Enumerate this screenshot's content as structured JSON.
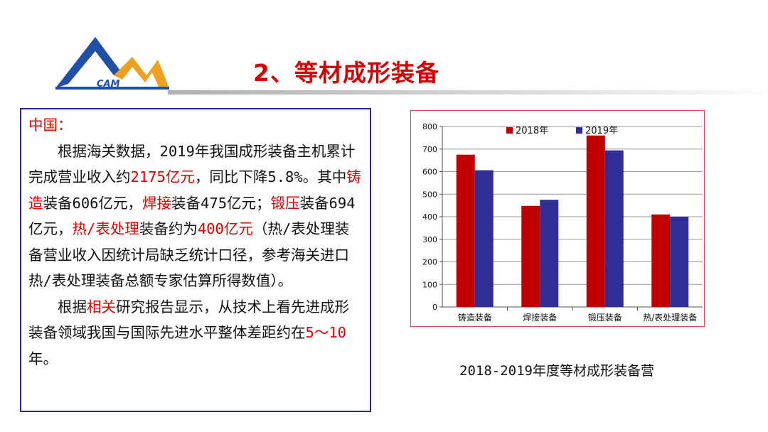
{
  "logo": {
    "text": "CAM"
  },
  "title": "2、等材成形装备",
  "textbox": {
    "heading": "中国：",
    "p1": [
      {
        "text": "根据海关数据，2019年我国成形装备主机累计完成营业收入约",
        "red": false
      },
      {
        "text": "2175亿元",
        "red": true
      },
      {
        "text": "，同比下降5.8%。其中",
        "red": false
      },
      {
        "text": "铸造",
        "red": true
      },
      {
        "text": "装备606亿元，",
        "red": false
      },
      {
        "text": "焊接",
        "red": true
      },
      {
        "text": "装备475亿元；",
        "red": false
      },
      {
        "text": "锻压",
        "red": true
      },
      {
        "text": "装备694亿元，",
        "red": false
      },
      {
        "text": "热/表处理",
        "red": true
      },
      {
        "text": "装备约为",
        "red": false
      },
      {
        "text": "400亿元",
        "red": true
      },
      {
        "text": "（热/表处理装备营业收入因统计局缺乏统计口径，参考海关进口热/表处理装备总额专家估算所得数值）。",
        "red": false
      }
    ],
    "p2": [
      {
        "text": "根据",
        "red": false
      },
      {
        "text": "相关",
        "red": true
      },
      {
        "text": "研究报告显示，从技术上看先进成形装备领域我国与国际先进水平整体差距约在",
        "red": false
      },
      {
        "text": "5～10",
        "red": true
      },
      {
        "text": "年。",
        "red": false
      }
    ]
  },
  "caption": "2018-2019年度等材成形装备营",
  "colors": {
    "series_2018": "#c00000",
    "series_2019": "#2e2e96",
    "title": "#d40000",
    "border": "#2a2a8c"
  },
  "chart_data": {
    "type": "bar",
    "categories": [
      "铸造装备",
      "焊接装备",
      "锻压装备",
      "热/表处理装备"
    ],
    "series": [
      {
        "name": "2018年",
        "values": [
          675,
          448,
          760,
          410
        ]
      },
      {
        "name": "2019年",
        "values": [
          606,
          475,
          694,
          400
        ]
      }
    ],
    "yticks": [
      0,
      100,
      200,
      300,
      400,
      500,
      600,
      700,
      800
    ],
    "ylim": [
      0,
      800
    ],
    "grid": true,
    "legend": "top"
  }
}
